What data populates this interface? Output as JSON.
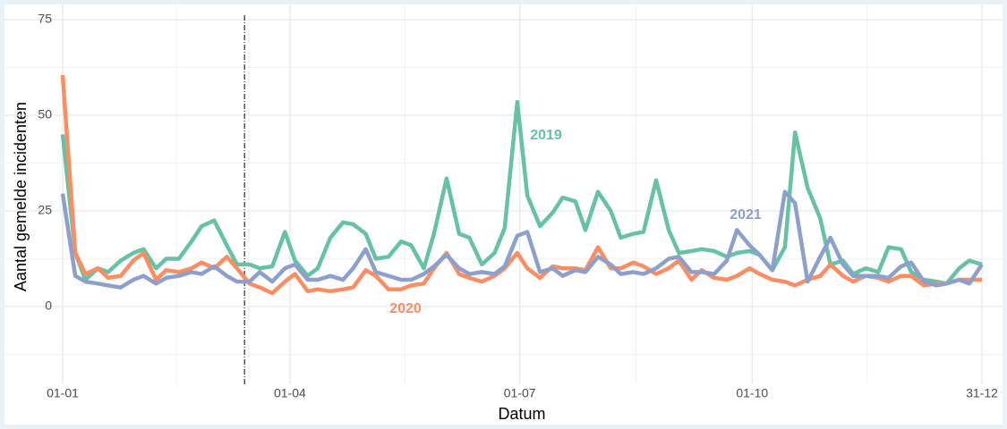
{
  "chart_data": {
    "type": "line",
    "x_label": "Datum",
    "y_label": "Aantal gemelde incidenten",
    "x": [
      "01-01",
      "06-01",
      "10-01",
      "15-01",
      "19-01",
      "24-01",
      "29-01",
      "02-02",
      "07-02",
      "11-02",
      "16-02",
      "21-02",
      "25-02",
      "02-03",
      "07-03",
      "11-03",
      "16-03",
      "20-03",
      "25-03",
      "30-03",
      "03-04",
      "08-04",
      "12-04",
      "17-04",
      "22-04",
      "26-04",
      "01-05",
      "05-05",
      "10-05",
      "15-05",
      "19-05",
      "24-05",
      "28-05",
      "02-06",
      "07-06",
      "11-06",
      "16-06",
      "21-06",
      "25-06",
      "30-06",
      "04-07",
      "09-07",
      "14-07",
      "18-07",
      "23-07",
      "27-07",
      "01-08",
      "06-08",
      "10-08",
      "15-08",
      "19-08",
      "24-08",
      "29-08",
      "02-09",
      "07-09",
      "11-09",
      "16-09",
      "21-09",
      "25-09",
      "30-09",
      "04-10",
      "09-10",
      "14-10",
      "18-10",
      "23-10",
      "28-10",
      "01-11",
      "06-11",
      "10-11",
      "15-11",
      "20-11",
      "24-11",
      "29-11",
      "03-12",
      "08-12",
      "13-12",
      "17-12",
      "22-12",
      "26-12",
      "31-12"
    ],
    "series": [
      {
        "name": "2019",
        "color": "#66c2a5",
        "values": [
          45,
          14,
          7,
          10,
          9,
          12,
          14,
          15,
          10,
          12.5,
          12.5,
          17,
          21,
          22.5,
          16,
          11,
          11,
          10,
          10.5,
          19.5,
          12,
          8,
          10,
          18,
          22,
          21.5,
          19,
          12.5,
          13,
          17,
          16,
          10,
          19,
          33.5,
          19,
          18,
          11,
          14,
          20.5,
          53.5,
          29,
          21,
          24.5,
          28.5,
          27.5,
          20,
          30,
          25,
          18,
          19,
          19.5,
          33,
          20,
          14,
          14.5,
          15,
          14.5,
          13,
          14,
          14.5,
          13.5,
          9.5,
          15.5,
          45.5,
          31,
          23,
          11,
          12,
          8.5,
          10,
          9,
          15.5,
          15,
          9,
          7,
          6.5,
          6,
          10,
          12,
          11
        ]
      },
      {
        "name": "2020",
        "color": "#fc8d62",
        "values": [
          60.5,
          14,
          8.5,
          10,
          7.5,
          8,
          12,
          14,
          7,
          9.5,
          9,
          10,
          11.5,
          10,
          13,
          10,
          6,
          5,
          3.5,
          6.5,
          8.5,
          4,
          4.5,
          4,
          4.5,
          5,
          9.5,
          8,
          4.5,
          4.5,
          5.5,
          6,
          10,
          14,
          8.5,
          7.5,
          6.5,
          8,
          10,
          14,
          10,
          7.5,
          10.5,
          10,
          10,
          9.5,
          15.5,
          10,
          10,
          11.5,
          10.5,
          8.5,
          10,
          12,
          7,
          9.5,
          7.5,
          7,
          8,
          10,
          8.5,
          7,
          6.5,
          5.5,
          7,
          8,
          11,
          8,
          6.5,
          8,
          7.5,
          6.5,
          8,
          8,
          5.5,
          6,
          6,
          7,
          7,
          7
        ]
      },
      {
        "name": "2021",
        "color": "#8da0cb",
        "values": [
          29.5,
          8,
          6.5,
          6,
          5.5,
          5,
          7,
          8,
          6,
          7.5,
          8,
          9,
          8.5,
          10.5,
          8,
          6.5,
          6.5,
          9,
          6.5,
          10,
          11,
          7,
          7,
          8,
          7,
          10,
          15,
          9,
          8,
          7,
          7,
          8.5,
          10.5,
          13.5,
          10,
          8.5,
          9,
          8.5,
          10.5,
          18.5,
          19.5,
          9,
          10,
          8,
          9.5,
          9,
          13,
          11,
          8.5,
          9,
          8.5,
          10,
          12.5,
          13,
          9,
          9,
          8.5,
          12,
          20,
          16,
          13.5,
          9.5,
          30,
          27,
          6.5,
          13,
          18,
          11,
          8,
          8,
          8,
          7.5,
          10.5,
          11.5,
          6.5,
          5.5,
          6,
          7,
          6,
          11
        ]
      }
    ],
    "vline_x": "14-03",
    "xticks": [
      "01-01",
      "01-04",
      "01-07",
      "01-10",
      "31-12"
    ],
    "ylim": [
      -18,
      77
    ],
    "yticks": [
      0,
      25,
      50,
      75
    ],
    "grid": true,
    "legend": "direct"
  }
}
